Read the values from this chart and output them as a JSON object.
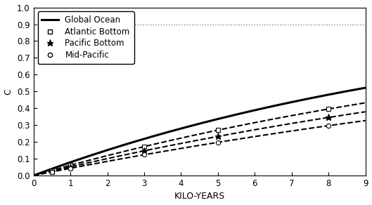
{
  "title": "",
  "xlabel": "KILO-YEARS",
  "ylabel": "C",
  "xlim": [
    0,
    9
  ],
  "ylim": [
    0,
    1
  ],
  "yticks": [
    0.0,
    0.1,
    0.2,
    0.3,
    0.4,
    0.5,
    0.6,
    0.7,
    0.8,
    0.9,
    1.0
  ],
  "xticks": [
    0,
    1,
    2,
    3,
    4,
    5,
    6,
    7,
    8,
    9
  ],
  "hline_y": 0.9,
  "global_ocean_color": "black",
  "global_ocean_lw": 2.2,
  "dashed_lw": 1.5,
  "dashed_color": "black",
  "dashed_style": "--",
  "marker_x_points": [
    0.5,
    1.0,
    3.0,
    5.0,
    8.0
  ],
  "background_color": "#ffffff",
  "legend_loc": "upper left",
  "legend_fontsize": 8.5,
  "axis_fontsize": 9,
  "tick_fontsize": 8.5,
  "global_a": 1.0,
  "global_b": 0.082,
  "atl_a": 1.0,
  "atl_b": 0.063,
  "pac_a": 1.0,
  "pac_b": 0.053,
  "mid_a": 1.0,
  "mid_b": 0.044,
  "legend_entries": [
    "Global Ocean",
    "Atlantic Bottom",
    "Pacific Bottom",
    "Mid-Pacific"
  ]
}
